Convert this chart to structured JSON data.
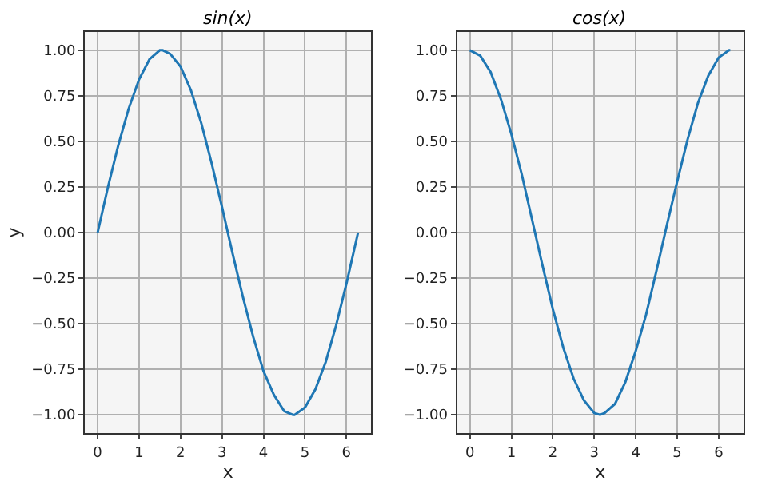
{
  "chart_data": [
    {
      "type": "line",
      "title": "sin(x)",
      "xlabel": "x",
      "ylabel": "y",
      "grid": true,
      "xlim": [
        -0.31,
        6.6
      ],
      "ylim": [
        -1.1,
        1.1
      ],
      "xticks": [
        0,
        1,
        2,
        3,
        4,
        5,
        6
      ],
      "yticks": [
        {
          "value": -1,
          "label": "−1.00"
        },
        {
          "value": -0.75,
          "label": "−0.75"
        },
        {
          "value": -0.5,
          "label": "−0.50"
        },
        {
          "value": -0.25,
          "label": "−0.25"
        },
        {
          "value": 0,
          "label": "0.00"
        },
        {
          "value": 0.25,
          "label": "0.25"
        },
        {
          "value": 0.5,
          "label": "0.50"
        },
        {
          "value": 0.75,
          "label": "0.75"
        },
        {
          "value": 1,
          "label": "1.00"
        }
      ],
      "series": [
        {
          "color": "#1f77b4",
          "x": [
            0,
            0.25,
            0.5,
            0.75,
            1,
            1.25,
            1.5,
            1.57,
            1.75,
            2,
            2.25,
            2.5,
            2.75,
            3,
            3.25,
            3.5,
            3.75,
            4,
            4.25,
            4.5,
            4.71,
            4.75,
            5,
            5.25,
            5.5,
            5.75,
            6,
            6.25,
            6.28
          ],
          "values": [
            0,
            0.25,
            0.48,
            0.68,
            0.84,
            0.95,
            1.0,
            1.0,
            0.98,
            0.91,
            0.78,
            0.6,
            0.38,
            0.14,
            -0.11,
            -0.35,
            -0.57,
            -0.76,
            -0.89,
            -0.98,
            -1.0,
            -1.0,
            -0.96,
            -0.86,
            -0.71,
            -0.51,
            -0.28,
            -0.03,
            0
          ]
        }
      ]
    },
    {
      "type": "line",
      "title": "cos(x)",
      "xlabel": "x",
      "grid": true,
      "xlim": [
        -0.31,
        6.6
      ],
      "ylim": [
        -1.1,
        1.1
      ],
      "xticks": [
        0,
        1,
        2,
        3,
        4,
        5,
        6
      ],
      "yticks": [
        {
          "value": -1,
          "label": "−1.00"
        },
        {
          "value": -0.75,
          "label": "−0.75"
        },
        {
          "value": -0.5,
          "label": "−0.50"
        },
        {
          "value": -0.25,
          "label": "−0.25"
        },
        {
          "value": 0,
          "label": "0.00"
        },
        {
          "value": 0.25,
          "label": "0.25"
        },
        {
          "value": 0.5,
          "label": "0.50"
        },
        {
          "value": 0.75,
          "label": "0.75"
        },
        {
          "value": 1,
          "label": "1.00"
        }
      ],
      "series": [
        {
          "color": "#1f77b4",
          "x": [
            0,
            0.25,
            0.5,
            0.75,
            1,
            1.25,
            1.5,
            1.75,
            2,
            2.25,
            2.5,
            2.75,
            3,
            3.14,
            3.25,
            3.5,
            3.75,
            4,
            4.25,
            4.5,
            4.75,
            5,
            5.25,
            5.5,
            5.75,
            6,
            6.25,
            6.28
          ],
          "values": [
            1.0,
            0.97,
            0.88,
            0.73,
            0.54,
            0.32,
            0.07,
            -0.18,
            -0.42,
            -0.63,
            -0.8,
            -0.92,
            -0.99,
            -1.0,
            -0.99,
            -0.94,
            -0.82,
            -0.65,
            -0.45,
            -0.21,
            0.04,
            0.28,
            0.51,
            0.71,
            0.86,
            0.96,
            1.0,
            1.0
          ]
        }
      ]
    }
  ]
}
